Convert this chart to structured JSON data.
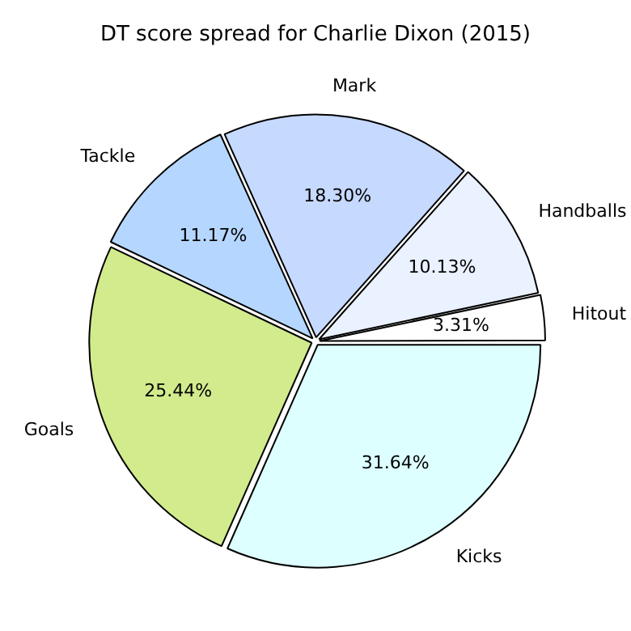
{
  "chart_data": {
    "type": "pie",
    "title": "DT score spread for Charlie Dixon (2015)",
    "categories": [
      "Kicks",
      "Goals",
      "Tackle",
      "Mark",
      "Handballs",
      "Hitout"
    ],
    "values": [
      31.64,
      25.44,
      11.17,
      18.3,
      10.13,
      3.31
    ],
    "colors": [
      "#ddffff",
      "#d2eb8c",
      "#b5d7ff",
      "#c6d9ff",
      "#eaf1ff",
      "#ffffff"
    ],
    "value_labels": [
      "31.64%",
      "25.44%",
      "11.17%",
      "18.30%",
      "10.13%",
      "3.31%"
    ],
    "legend": false
  }
}
